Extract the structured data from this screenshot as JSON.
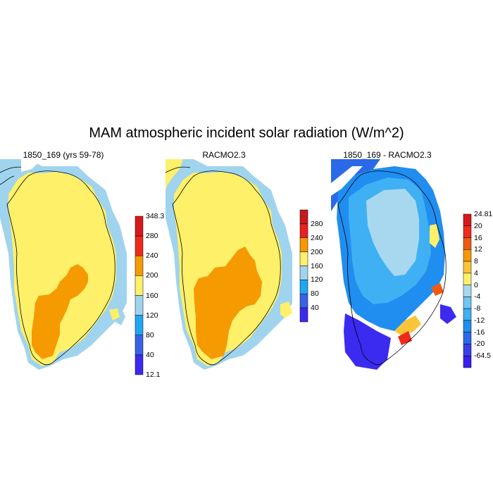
{
  "title": "MAM atmospheric incident solar radiation (W/m^2)",
  "panels": [
    {
      "title": "1850_169 (yrs 59-78)"
    },
    {
      "title": "RACMO2.3"
    },
    {
      "title": "1850_169 - RACMO2.3"
    }
  ],
  "colorbars": [
    {
      "labels": [
        "348.3",
        "280",
        "240",
        "200",
        "160",
        "120",
        "80",
        "40",
        "12.1"
      ],
      "colors": [
        "#d7191c",
        "#ee2a1a",
        "#f59a00",
        "#fff06a",
        "#a0d4ee",
        "#1fa7f2",
        "#3a62e6",
        "#3b2bf0"
      ]
    },
    {
      "labels": [
        "280",
        "240",
        "200",
        "160",
        "120",
        "80",
        "40"
      ],
      "colors": [
        "#c81a1a",
        "#e8211f",
        "#f59a00",
        "#fff06a",
        "#a0d4ee",
        "#1fa7f2",
        "#3a62e6",
        "#3b2bf0"
      ]
    },
    {
      "labels": [
        "24.81",
        "20",
        "16",
        "12",
        "8",
        "4",
        "0",
        "-4",
        "-8",
        "-12",
        "-16",
        "-20",
        "-64.5"
      ],
      "colors": [
        "#d7191c",
        "#ee2a1a",
        "#f15a12",
        "#f59a00",
        "#fbc53a",
        "#fff06a",
        "#a8d8f0",
        "#70c6f2",
        "#3fb0f3",
        "#1f8ef0",
        "#2a6ae8",
        "#3a3fea",
        "#3b1ef0"
      ]
    }
  ]
}
